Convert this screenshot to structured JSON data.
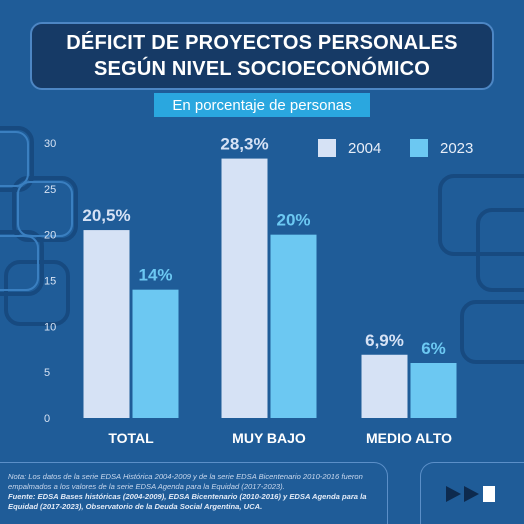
{
  "header": {
    "title_line1": "DÉFICIT DE PROYECTOS PERSONALES",
    "title_line2": "SEGÚN NIVEL SOCIOECONÓMICO",
    "subtitle": "En porcentaje de personas"
  },
  "chart_data": {
    "type": "bar",
    "categories": [
      "TOTAL",
      "MUY BAJO",
      "MEDIO ALTO"
    ],
    "series": [
      {
        "name": "2004",
        "values": [
          20.5,
          28.3,
          6.9
        ],
        "labels": [
          "20,5%",
          "28,3%",
          "6,9%"
        ],
        "color": "#d6e2f5"
      },
      {
        "name": "2023",
        "values": [
          14,
          20,
          6
        ],
        "labels": [
          "14%",
          "20%",
          "6%"
        ],
        "color": "#6cc8f2"
      }
    ],
    "ylim": [
      0,
      30
    ],
    "yticks": [
      0,
      5,
      10,
      15,
      20,
      25,
      30
    ],
    "grid": false,
    "legend": "top-right"
  },
  "footer": {
    "note": "Nota: Los datos de la serie EDSA Histórica 2004-2009 y de la serie EDSA Bicentenario 2010-2016 fueron empalmados a los valores de la serie EDSA Agenda para la Equidad (2017-2023).",
    "source": "Fuente: EDSA Bases históricas (2004-2009), EDSA Bicentenario (2010-2016) y EDSA Agenda para la Equidad (2017-2023), Observatorio de la Deuda Social Argentina, UCA."
  },
  "colors": {
    "background": "#1f5c98",
    "title_box": "#163a66",
    "subtitle_bg": "#2aa7df",
    "label_2004": "#d6e2f5",
    "label_2023": "#6cc8f2"
  },
  "icons": {
    "decoration": "chain-links-decoration",
    "nav": "play-forward-icon"
  }
}
